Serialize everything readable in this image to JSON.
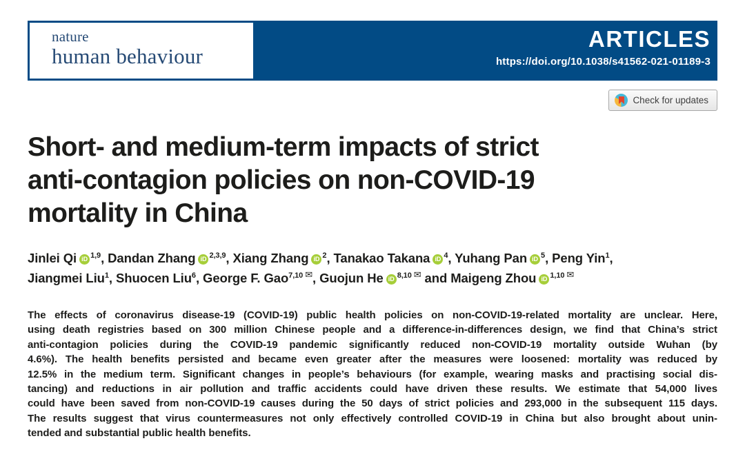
{
  "colors": {
    "navy": "#024b85",
    "logo_text": "#264a75",
    "text": "#1d1d1b",
    "orcid_green": "#a6ce39",
    "crossmark_cyan": "#45b8d8",
    "crossmark_yellow": "#f5b83d",
    "crossmark_red": "#e4442d",
    "badge_border": "#a8a8a8"
  },
  "masthead": {
    "journal_small": "nature",
    "journal_large": "human behaviour",
    "section_label": "ARTICLES",
    "doi": "https://doi.org/10.1038/s41562-021-01189-3"
  },
  "update_badge": {
    "label": "Check for updates"
  },
  "title": {
    "lines": [
      "Short- and medium-term impacts of strict",
      "anti-contagion policies on non-COVID-19",
      "mortality in China"
    ]
  },
  "icons": {
    "orcid_label": "iD",
    "envelope_glyph": "✉"
  },
  "authors": {
    "line1": [
      {
        "name": "Jinlei Qi",
        "orcid": true,
        "sup": "1,9",
        "mail": false,
        "sep": ", "
      },
      {
        "name": "Dandan Zhang",
        "orcid": true,
        "sup": "2,3,9",
        "mail": false,
        "sep": ", "
      },
      {
        "name": "Xiang Zhang",
        "orcid": true,
        "sup": "2",
        "mail": false,
        "sep": ", "
      },
      {
        "name": "Tanakao Takana",
        "orcid": true,
        "sup": "4",
        "mail": false,
        "sep": ", "
      },
      {
        "name": "Yuhang Pan",
        "orcid": true,
        "sup": "5",
        "mail": false,
        "sep": ", "
      },
      {
        "name": "Peng Yin",
        "orcid": false,
        "sup": "1",
        "mail": false,
        "sep": ","
      }
    ],
    "line2": [
      {
        "name": "Jiangmei Liu",
        "orcid": false,
        "sup": "1",
        "mail": false,
        "sep": ", "
      },
      {
        "name": "Shuocen Liu",
        "orcid": false,
        "sup": "6",
        "mail": false,
        "sep": ", "
      },
      {
        "name": "George F. Gao",
        "orcid": false,
        "sup": "7,10",
        "mail": true,
        "sep": ", "
      },
      {
        "name": "Guojun He",
        "orcid": true,
        "sup": "8,10",
        "mail": true,
        "sep": " and "
      },
      {
        "name": "Maigeng Zhou",
        "orcid": true,
        "sup": "1,10",
        "mail": true,
        "sep": ""
      }
    ]
  },
  "abstract": {
    "lines": [
      "The effects of coronavirus disease-19 (COVID-19) public health policies on non-COVID-19-related mortality are unclear. Here,",
      "using death registries based on 300 million Chinese people and a difference-in-differences design, we find that China’s strict",
      "anti-contagion policies during the COVID-19 pandemic significantly reduced non-COVID-19 mortality outside Wuhan (by",
      "4.6%). The health benefits persisted and became even greater after the measures were loosened: mortality was reduced by",
      "12.5% in the medium term. Significant changes in people’s behaviours (for example, wearing masks and practising social dis-",
      "tancing) and reductions in air pollution and traffic accidents could have driven these results. We estimate that 54,000 lives",
      "could have been saved from non-COVID-19 causes during the 50 days of strict policies and 293,000 in the subsequent 115 days.",
      "The results suggest that virus countermeasures not only effectively controlled COVID-19 in China but also brought about unin-",
      "tended and substantial public health benefits."
    ]
  }
}
